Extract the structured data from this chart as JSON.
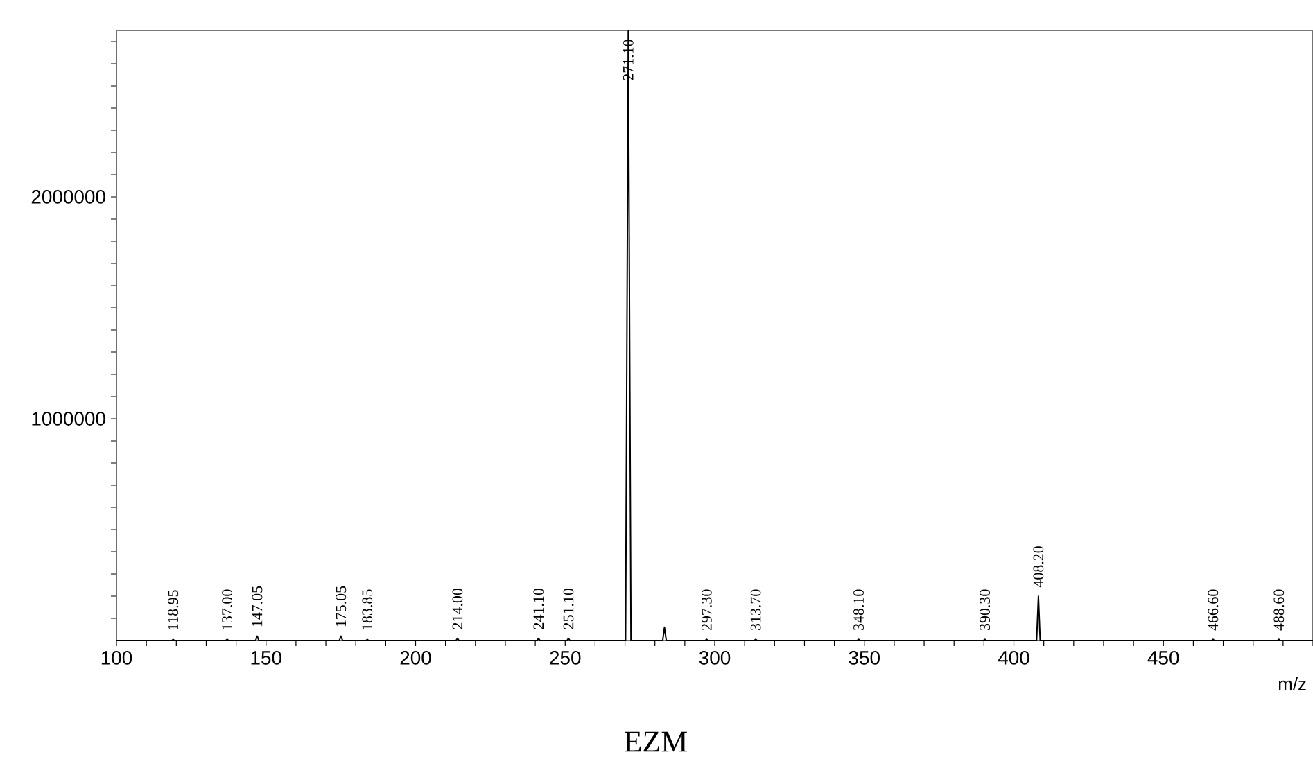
{
  "chart_data": {
    "type": "line",
    "title": "EZM",
    "xlabel": "m/z",
    "color": "#000000",
    "x": [
      100,
      118.5,
      118.95,
      119.4,
      136.5,
      137,
      137.5,
      146.5,
      147.05,
      147.6,
      174.5,
      175.05,
      175.6,
      183.4,
      183.85,
      184.3,
      213.5,
      214,
      214.5,
      240.6,
      241.1,
      241.6,
      250.6,
      251.1,
      251.6,
      270.2,
      271.1,
      272,
      282.6,
      283.2,
      283.8,
      296.8,
      297.3,
      297.8,
      313.2,
      313.7,
      314.2,
      347.6,
      348.1,
      348.6,
      389.8,
      390.3,
      390.8,
      407.6,
      408.2,
      408.8,
      466.1,
      466.6,
      467.1,
      488.1,
      488.6,
      489.1,
      500
    ],
    "values": [
      0,
      0,
      5000,
      0,
      0,
      5000,
      0,
      0,
      20000,
      0,
      0,
      20000,
      0,
      0,
      5000,
      0,
      0,
      10000,
      0,
      0,
      10000,
      0,
      0,
      10000,
      0,
      0,
      2750000,
      0,
      0,
      60000,
      0,
      0,
      5000,
      0,
      0,
      5000,
      0,
      0,
      5000,
      0,
      0,
      5000,
      0,
      0,
      200000,
      0,
      0,
      5000,
      0,
      0,
      5000,
      0,
      0
    ],
    "xlim": [
      100,
      500
    ],
    "ylim": [
      0,
      2750000
    ],
    "xticks": [
      100,
      {
        "value": 110,
        "label": null
      },
      {
        "value": 120,
        "label": null
      },
      {
        "value": 130,
        "label": null
      },
      {
        "value": 140,
        "label": null
      },
      150,
      {
        "value": 160,
        "label": null
      },
      {
        "value": 170,
        "label": null
      },
      {
        "value": 180,
        "label": null
      },
      {
        "value": 190,
        "label": null
      },
      200,
      {
        "value": 210,
        "label": null
      },
      {
        "value": 220,
        "label": null
      },
      {
        "value": 230,
        "label": null
      },
      {
        "value": 240,
        "label": null
      },
      250,
      {
        "value": 260,
        "label": null
      },
      {
        "value": 270,
        "label": null
      },
      {
        "value": 280,
        "label": null
      },
      {
        "value": 290,
        "label": null
      },
      300,
      {
        "value": 310,
        "label": null
      },
      {
        "value": 320,
        "label": null
      },
      {
        "value": 330,
        "label": null
      },
      {
        "value": 340,
        "label": null
      },
      350,
      {
        "value": 360,
        "label": null
      },
      {
        "value": 370,
        "label": null
      },
      {
        "value": 380,
        "label": null
      },
      {
        "value": 390,
        "label": null
      },
      400,
      {
        "value": 410,
        "label": null
      },
      {
        "value": 420,
        "label": null
      },
      {
        "value": 430,
        "label": null
      },
      {
        "value": 440,
        "label": null
      },
      450,
      {
        "value": 460,
        "label": null
      },
      {
        "value": 470,
        "label": null
      },
      {
        "value": 480,
        "label": null
      },
      {
        "value": 490,
        "label": null
      },
      {
        "value": 500,
        "label": null
      }
    ],
    "yticks": [
      {
        "value": 100000,
        "label": null
      },
      {
        "value": 200000,
        "label": null
      },
      {
        "value": 300000,
        "label": null
      },
      {
        "value": 400000,
        "label": null
      },
      {
        "value": 500000,
        "label": null
      },
      {
        "value": 600000,
        "label": null
      },
      {
        "value": 700000,
        "label": null
      },
      {
        "value": 800000,
        "label": null
      },
      {
        "value": 900000,
        "label": null
      },
      1000000,
      {
        "value": 1100000,
        "label": null
      },
      {
        "value": 1200000,
        "label": null
      },
      {
        "value": 1300000,
        "label": null
      },
      {
        "value": 1400000,
        "label": null
      },
      {
        "value": 1500000,
        "label": null
      },
      {
        "value": 1600000,
        "label": null
      },
      {
        "value": 1700000,
        "label": null
      },
      {
        "value": 1800000,
        "label": null
      },
      {
        "value": 1900000,
        "label": null
      },
      2000000,
      {
        "value": 2100000,
        "label": null
      },
      {
        "value": 2200000,
        "label": null
      },
      {
        "value": 2300000,
        "label": null
      },
      {
        "value": 2400000,
        "label": null
      },
      {
        "value": 2500000,
        "label": null
      },
      {
        "value": 2600000,
        "label": null
      },
      {
        "value": 2700000,
        "label": null
      }
    ],
    "annotations": [
      {
        "text": "118.95",
        "x": 118.95,
        "y": 5000
      },
      {
        "text": "137.00",
        "x": 137,
        "y": 5000
      },
      {
        "text": "147.05",
        "x": 147.05,
        "y": 20000
      },
      {
        "text": "175.05",
        "x": 175.05,
        "y": 20000
      },
      {
        "text": "183.85",
        "x": 183.85,
        "y": 5000
      },
      {
        "text": "214.00",
        "x": 214,
        "y": 10000
      },
      {
        "text": "241.10",
        "x": 241.1,
        "y": 10000
      },
      {
        "text": "251.10",
        "x": 251.1,
        "y": 10000
      },
      {
        "text": "271.10",
        "x": 271.1,
        "y": 2750000
      },
      {
        "text": "297.30",
        "x": 297.3,
        "y": 5000
      },
      {
        "text": "313.70",
        "x": 313.7,
        "y": 5000
      },
      {
        "text": "348.10",
        "x": 348.1,
        "y": 5000
      },
      {
        "text": "390.30",
        "x": 390.3,
        "y": 5000
      },
      {
        "text": "408.20",
        "x": 408.2,
        "y": 200000
      },
      {
        "text": "466.60",
        "x": 466.6,
        "y": 5000
      },
      {
        "text": "488.60",
        "x": 488.6,
        "y": 5000
      }
    ]
  }
}
